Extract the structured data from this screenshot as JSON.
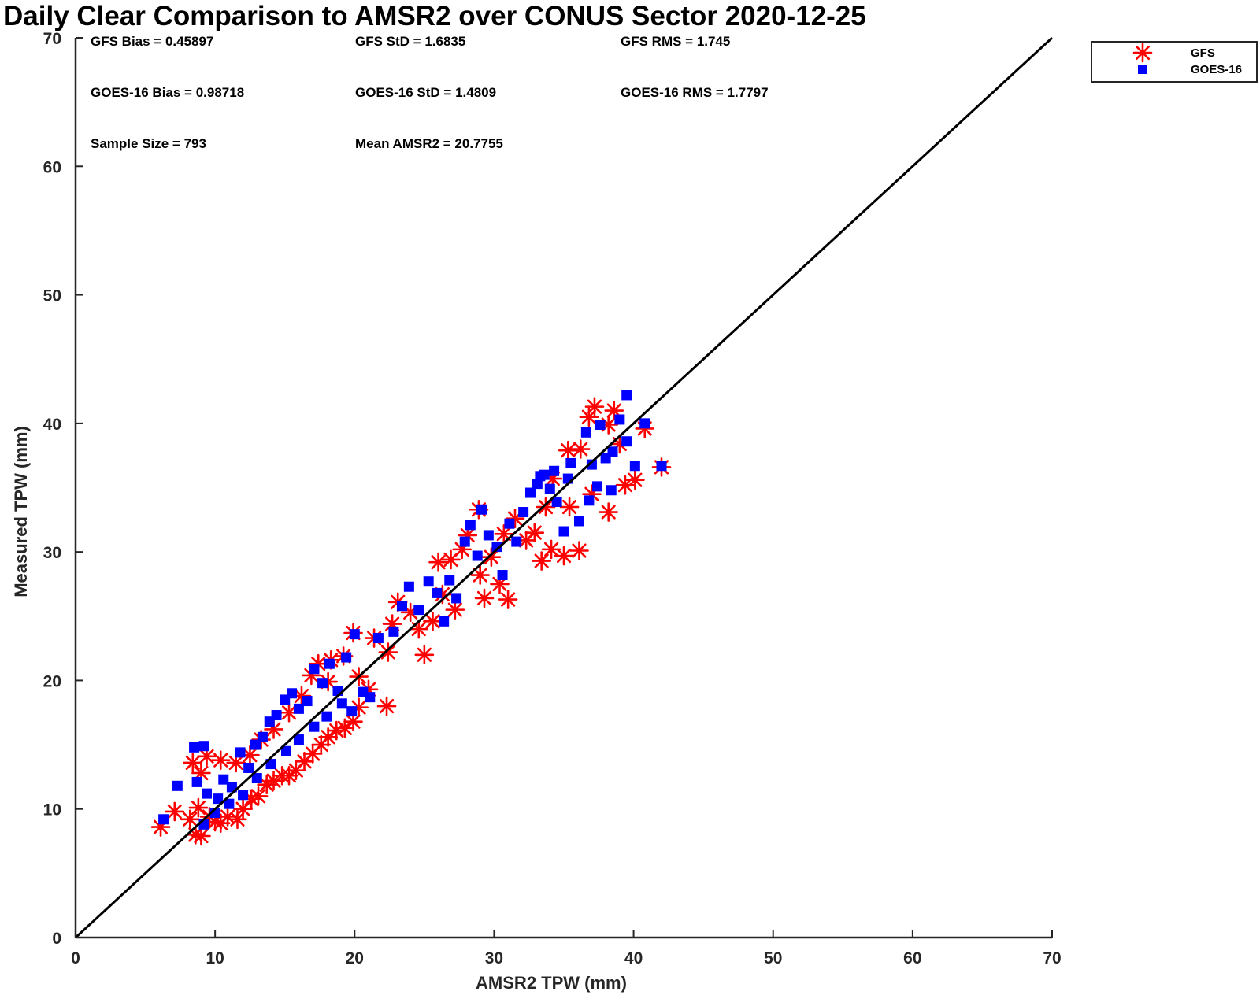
{
  "chart_data": {
    "type": "scatter",
    "title": "Daily Clear Comparison to AMSR2 over CONUS Sector 2020-12-25",
    "xlabel": "AMSR2 TPW (mm)",
    "ylabel": "Measured TPW (mm)",
    "xlim": [
      0,
      70
    ],
    "ylim": [
      0,
      70
    ],
    "xticks": [
      "0",
      "10",
      "20",
      "30",
      "40",
      "50",
      "60",
      "70"
    ],
    "yticks": [
      "0",
      "10",
      "20",
      "30",
      "40",
      "50",
      "60",
      "70"
    ],
    "grid": false,
    "legend_position": "outside-top-right",
    "reference_line": [
      [
        0,
        0
      ],
      [
        70,
        70
      ]
    ],
    "stats": [
      [
        "GFS Bias = 0.45897",
        "GFS StD = 1.6835",
        "GFS RMS = 1.745"
      ],
      [
        "GOES-16 Bias = 0.98718",
        "GOES-16 StD = 1.4809",
        "GOES-16 RMS = 1.7797"
      ],
      [
        "Sample Size = 793",
        "Mean AMSR2 = 20.7755"
      ]
    ],
    "series": [
      {
        "name": "GFS",
        "marker": "asterisk",
        "color": "#ff0000",
        "points": [
          [
            6.1,
            8.6
          ],
          [
            7.1,
            9.8
          ],
          [
            8.2,
            9.2
          ],
          [
            8.6,
            8.0
          ],
          [
            9.0,
            7.9
          ],
          [
            8.8,
            10.1
          ],
          [
            9.6,
            9.4
          ],
          [
            10.0,
            9.0
          ],
          [
            10.4,
            8.9
          ],
          [
            10.9,
            9.4
          ],
          [
            11.6,
            9.2
          ],
          [
            12.0,
            10.0
          ],
          [
            12.6,
            10.8
          ],
          [
            13.1,
            11.0
          ],
          [
            13.7,
            11.9
          ],
          [
            14.2,
            12.2
          ],
          [
            14.8,
            12.6
          ],
          [
            15.3,
            12.6
          ],
          [
            15.8,
            13.0
          ],
          [
            16.4,
            13.7
          ],
          [
            17.0,
            14.3
          ],
          [
            17.6,
            15.0
          ],
          [
            18.1,
            15.6
          ],
          [
            18.7,
            16.1
          ],
          [
            19.3,
            16.3
          ],
          [
            19.9,
            16.8
          ],
          [
            20.3,
            17.9
          ],
          [
            9.0,
            12.8
          ],
          [
            8.4,
            13.6
          ],
          [
            9.4,
            14.1
          ],
          [
            10.4,
            13.8
          ],
          [
            11.5,
            13.6
          ],
          [
            12.5,
            14.2
          ],
          [
            13.3,
            15.4
          ],
          [
            14.2,
            16.2
          ],
          [
            15.3,
            17.5
          ],
          [
            16.2,
            18.8
          ],
          [
            16.9,
            20.4
          ],
          [
            17.4,
            21.3
          ],
          [
            18.1,
            19.9
          ],
          [
            19.2,
            21.9
          ],
          [
            19.9,
            23.7
          ],
          [
            18.3,
            21.6
          ],
          [
            20.3,
            20.3
          ],
          [
            21.0,
            19.3
          ],
          [
            22.3,
            18.0
          ],
          [
            21.4,
            23.3
          ],
          [
            22.4,
            22.2
          ],
          [
            22.7,
            24.4
          ],
          [
            23.1,
            26.1
          ],
          [
            24.0,
            25.3
          ],
          [
            24.6,
            24.0
          ],
          [
            25.0,
            22.0
          ],
          [
            25.6,
            24.6
          ],
          [
            26.3,
            26.7
          ],
          [
            27.2,
            25.5
          ],
          [
            26.0,
            29.2
          ],
          [
            26.9,
            29.4
          ],
          [
            28.1,
            31.3
          ],
          [
            28.9,
            33.3
          ],
          [
            27.7,
            30.2
          ],
          [
            29.0,
            28.2
          ],
          [
            29.3,
            26.4
          ],
          [
            30.4,
            27.5
          ],
          [
            31.0,
            26.3
          ],
          [
            29.8,
            29.6
          ],
          [
            30.7,
            31.4
          ],
          [
            31.5,
            32.6
          ],
          [
            32.3,
            30.9
          ],
          [
            32.9,
            31.5
          ],
          [
            33.4,
            29.3
          ],
          [
            34.1,
            30.2
          ],
          [
            35.0,
            29.7
          ],
          [
            36.1,
            30.1
          ],
          [
            33.7,
            33.5
          ],
          [
            35.4,
            33.5
          ],
          [
            37.0,
            34.5
          ],
          [
            38.2,
            33.1
          ],
          [
            39.4,
            35.2
          ],
          [
            40.1,
            35.6
          ],
          [
            42.0,
            36.6
          ],
          [
            40.8,
            39.6
          ],
          [
            39.0,
            38.4
          ],
          [
            38.2,
            39.9
          ],
          [
            37.2,
            41.3
          ],
          [
            38.6,
            41.0
          ],
          [
            36.2,
            38.0
          ],
          [
            35.3,
            37.9
          ],
          [
            34.2,
            35.7
          ],
          [
            36.8,
            40.5
          ]
        ]
      },
      {
        "name": "GOES-16",
        "marker": "square",
        "color": "#0000ff",
        "points": [
          [
            6.3,
            9.2
          ],
          [
            7.3,
            11.8
          ],
          [
            8.5,
            14.8
          ],
          [
            9.2,
            14.9
          ],
          [
            8.7,
            12.1
          ],
          [
            9.4,
            11.2
          ],
          [
            10.2,
            10.8
          ],
          [
            10.6,
            12.3
          ],
          [
            11.2,
            11.7
          ],
          [
            11.8,
            14.4
          ],
          [
            12.4,
            13.2
          ],
          [
            12.9,
            15.0
          ],
          [
            13.4,
            15.6
          ],
          [
            13.9,
            16.8
          ],
          [
            14.4,
            17.3
          ],
          [
            15.0,
            18.5
          ],
          [
            15.5,
            19.0
          ],
          [
            16.0,
            17.8
          ],
          [
            16.6,
            18.4
          ],
          [
            17.1,
            20.9
          ],
          [
            17.7,
            19.8
          ],
          [
            18.2,
            21.3
          ],
          [
            18.8,
            19.2
          ],
          [
            19.4,
            21.8
          ],
          [
            20.0,
            23.6
          ],
          [
            20.6,
            19.1
          ],
          [
            21.1,
            18.7
          ],
          [
            21.7,
            23.3
          ],
          [
            9.2,
            8.8
          ],
          [
            10.0,
            9.7
          ],
          [
            11.0,
            10.4
          ],
          [
            12.0,
            11.1
          ],
          [
            13.0,
            12.4
          ],
          [
            14.0,
            13.5
          ],
          [
            15.1,
            14.5
          ],
          [
            16.0,
            15.4
          ],
          [
            17.1,
            16.4
          ],
          [
            18.0,
            17.2
          ],
          [
            19.1,
            18.2
          ],
          [
            19.8,
            17.6
          ],
          [
            22.8,
            23.8
          ],
          [
            23.4,
            25.8
          ],
          [
            23.9,
            27.3
          ],
          [
            24.6,
            25.5
          ],
          [
            25.3,
            27.7
          ],
          [
            25.9,
            26.8
          ],
          [
            26.4,
            24.6
          ],
          [
            26.8,
            27.8
          ],
          [
            27.3,
            26.4
          ],
          [
            27.9,
            30.8
          ],
          [
            28.3,
            32.1
          ],
          [
            28.8,
            29.7
          ],
          [
            29.1,
            33.3
          ],
          [
            29.6,
            31.3
          ],
          [
            30.2,
            30.4
          ],
          [
            30.6,
            28.2
          ],
          [
            31.1,
            32.2
          ],
          [
            31.6,
            30.8
          ],
          [
            32.1,
            33.1
          ],
          [
            32.6,
            34.6
          ],
          [
            33.1,
            35.3
          ],
          [
            33.6,
            36.0
          ],
          [
            34.0,
            34.9
          ],
          [
            34.5,
            33.9
          ],
          [
            35.0,
            31.6
          ],
          [
            35.5,
            36.9
          ],
          [
            36.1,
            32.4
          ],
          [
            36.6,
            39.3
          ],
          [
            37.0,
            36.8
          ],
          [
            37.6,
            39.9
          ],
          [
            38.0,
            37.3
          ],
          [
            38.5,
            37.8
          ],
          [
            39.0,
            40.3
          ],
          [
            39.5,
            42.2
          ],
          [
            40.1,
            36.7
          ],
          [
            40.8,
            40.0
          ],
          [
            42.0,
            36.7
          ],
          [
            37.4,
            35.1
          ],
          [
            36.8,
            34.0
          ],
          [
            35.3,
            35.7
          ],
          [
            34.3,
            36.3
          ],
          [
            33.3,
            35.9
          ],
          [
            38.4,
            34.8
          ],
          [
            39.5,
            38.6
          ]
        ]
      }
    ]
  }
}
